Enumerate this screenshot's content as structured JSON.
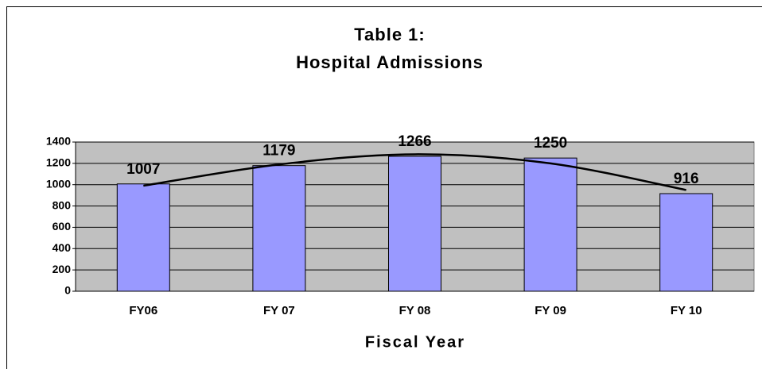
{
  "chart_data": {
    "type": "bar",
    "title_lines": [
      "Table 1:",
      "Hospital Admissions"
    ],
    "x_label": "Fiscal Year",
    "categories": [
      "FY06",
      "FY 07",
      "FY 08",
      "FY 09",
      "FY 10"
    ],
    "values": [
      1007,
      1179,
      1266,
      1250,
      916
    ],
    "color": "#9999ff",
    "trend_values": [
      990,
      1190,
      1285,
      1200,
      950
    ],
    "ylim": [
      0,
      1400
    ],
    "yticks": [
      0,
      200,
      400,
      600,
      800,
      1000,
      1200,
      1400
    ],
    "grid": true
  }
}
